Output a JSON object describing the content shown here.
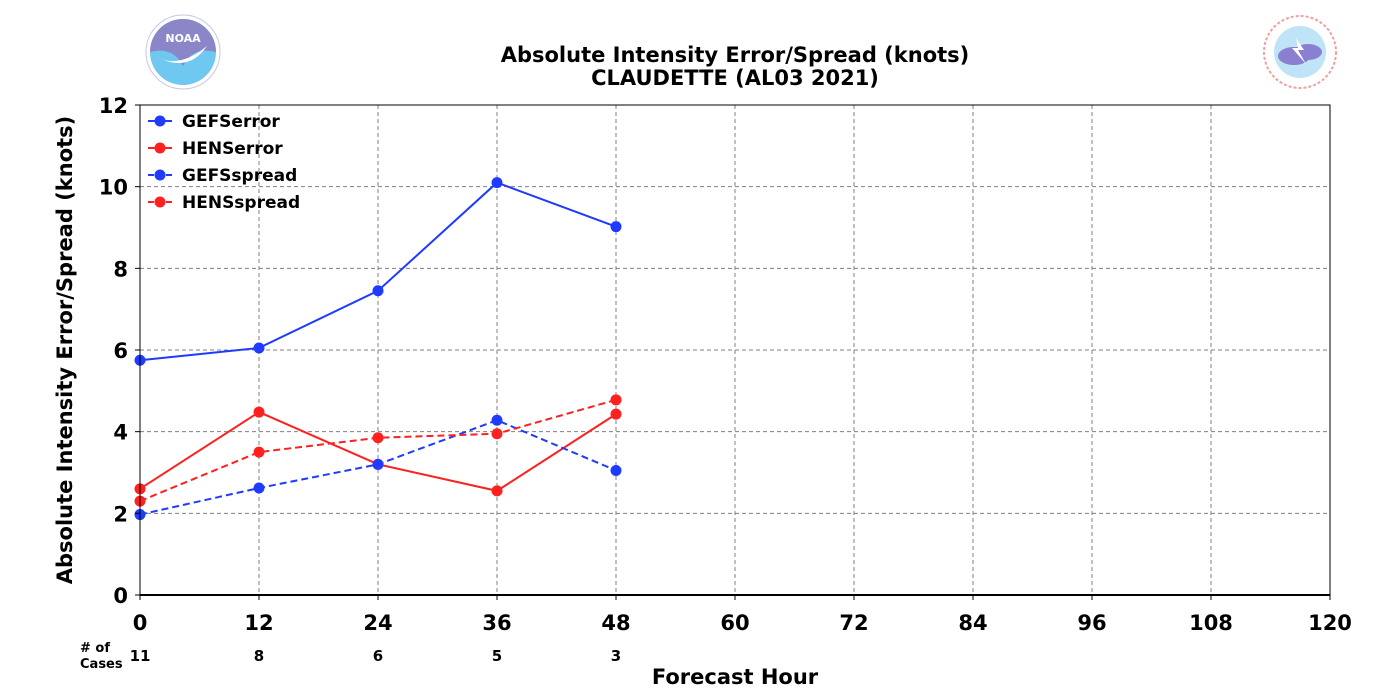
{
  "chart_data": {
    "type": "line",
    "title": "Absolute Intensity Error/Spread (knots)",
    "subtitle": "CLAUDETTE (AL03 2021)",
    "xlabel": "Forecast Hour",
    "ylabel": "Absolute Intensity Error/Spread (knots)",
    "xlim": [
      0,
      120
    ],
    "ylim": [
      0,
      12
    ],
    "xticks": [
      0,
      12,
      24,
      36,
      48,
      60,
      72,
      84,
      96,
      108,
      120
    ],
    "yticks": [
      0,
      2,
      4,
      6,
      8,
      10,
      12
    ],
    "grid": true,
    "legend_position": "top-left",
    "x": [
      0,
      12,
      24,
      36,
      48
    ],
    "series": [
      {
        "name": "GEFSerror",
        "color": "#1f3bff",
        "dash": "solid",
        "values": [
          5.75,
          6.05,
          7.45,
          10.1,
          9.02
        ]
      },
      {
        "name": "HENSerror",
        "color": "#ff2020",
        "dash": "solid",
        "values": [
          2.6,
          4.48,
          3.2,
          2.55,
          4.43
        ]
      },
      {
        "name": "GEFSspread",
        "color": "#1f3bff",
        "dash": "dashed",
        "values": [
          1.97,
          2.62,
          3.2,
          4.28,
          3.05
        ]
      },
      {
        "name": "HENSspread",
        "color": "#ff2020",
        "dash": "dashed",
        "values": [
          2.3,
          3.5,
          3.85,
          3.95,
          4.78
        ]
      }
    ],
    "cases": {
      "label_line1": "# of",
      "label_line2": "Cases",
      "hours": [
        0,
        12,
        24,
        36,
        48
      ],
      "values": [
        "11",
        "8",
        "6",
        "5",
        "3"
      ]
    }
  },
  "logos": {
    "left": {
      "name": "noaa-logo",
      "text": "NOAA",
      "color": "#6fc8f0"
    },
    "right": {
      "name": "nws-logo",
      "text": "NATIONAL WEATHER SERVICE",
      "color": "#e05050"
    }
  }
}
